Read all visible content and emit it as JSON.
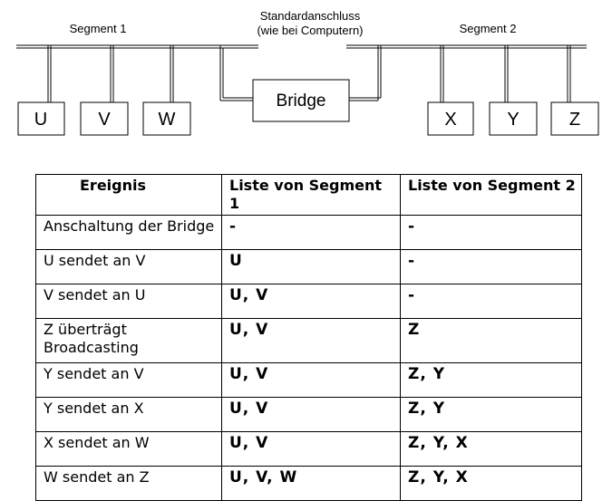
{
  "diagram": {
    "segment1_label": "Segment 1",
    "segment2_label": "Segment 2",
    "connector_label_line1": "Standardanschluss",
    "connector_label_line2": "(wie bei Computern)",
    "bridge_label": "Bridge",
    "segment1_hosts": [
      "U",
      "V",
      "W"
    ],
    "segment2_hosts": [
      "X",
      "Y",
      "Z"
    ]
  },
  "table": {
    "headers": [
      "Ereignis",
      "Liste von Segment 1",
      "Liste von Segment 2"
    ],
    "rows": [
      {
        "event": "Anschaltung der Bridge",
        "seg1": "-",
        "seg2": "-"
      },
      {
        "event": "U sendet an V",
        "seg1": "U",
        "seg2": "-"
      },
      {
        "event": "V sendet an U",
        "seg1": "U, V",
        "seg2": "-"
      },
      {
        "event_line1": "Z überträgt",
        "event_line2": "Broadcasting",
        "seg1": "U, V",
        "seg2": "Z"
      },
      {
        "event": "Y sendet an V",
        "seg1": "U, V",
        "seg2": "Z, Y"
      },
      {
        "event": "Y sendet an X",
        "seg1": "U, V",
        "seg2": "Z, Y"
      },
      {
        "event": "X sendet an W",
        "seg1": "U, V",
        "seg2": "Z, Y, X"
      },
      {
        "event": "W sendet an Z",
        "seg1": "U, V, W",
        "seg2": "Z, Y, X"
      }
    ]
  }
}
